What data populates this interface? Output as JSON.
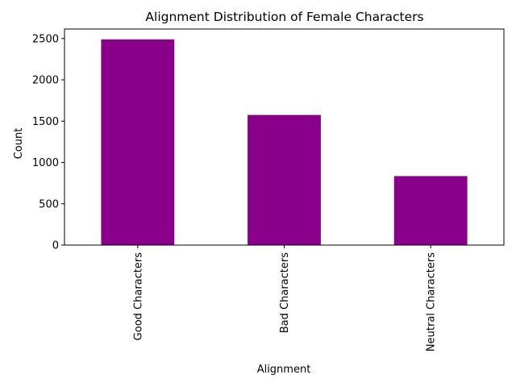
{
  "chart_data": {
    "type": "bar",
    "title": "Alignment Distribution of Female Characters",
    "xlabel": "Alignment",
    "ylabel": "Count",
    "categories": [
      "Good Characters",
      "Bad Characters",
      "Neutral Characters"
    ],
    "values": [
      2490,
      1575,
      835
    ],
    "ylim": [
      0,
      2615
    ],
    "yticks": [
      0,
      500,
      1000,
      1500,
      2000,
      2500
    ],
    "ytick_labels": [
      "0",
      "500",
      "1000",
      "1500",
      "2000",
      "2500"
    ],
    "bar_color": "#8b008b",
    "grid": false,
    "legend": "none"
  }
}
